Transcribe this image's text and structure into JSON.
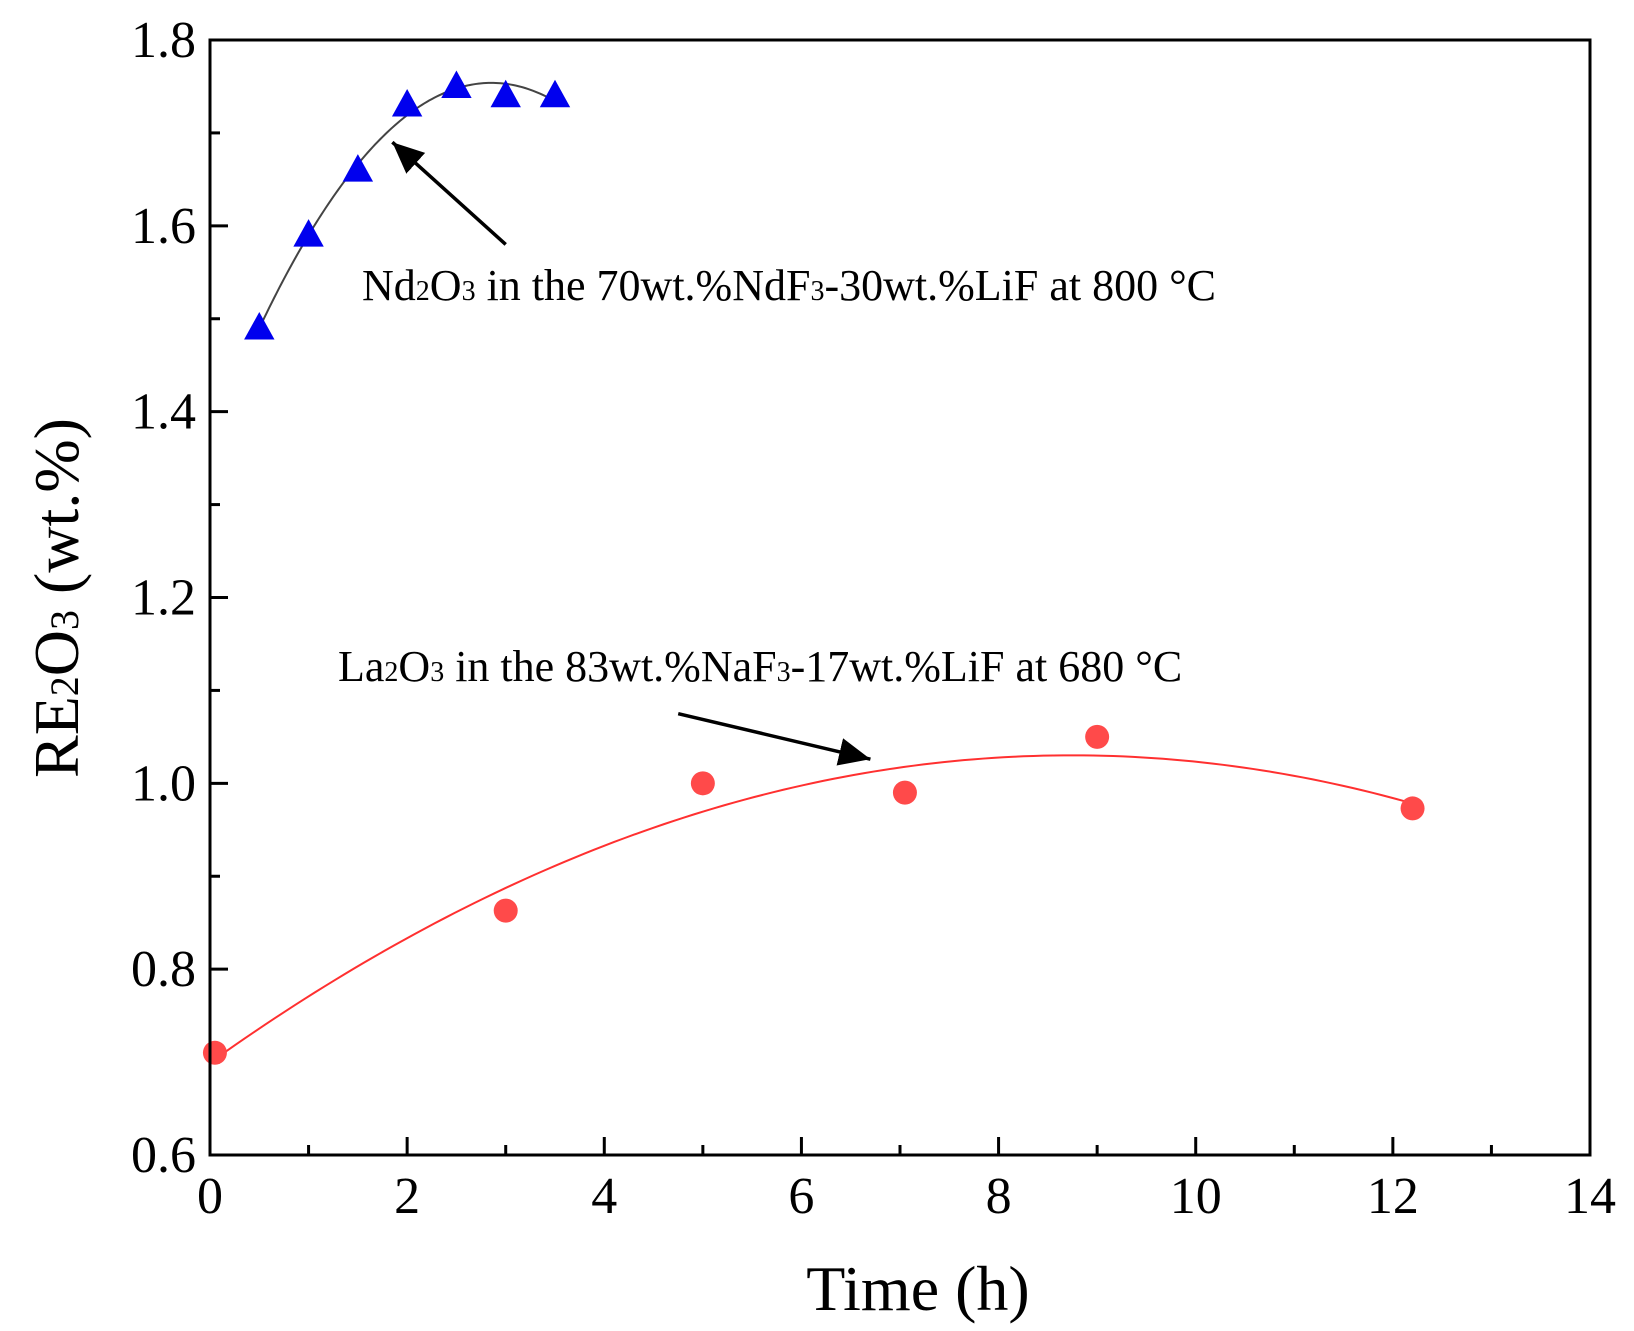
{
  "chart_data": {
    "type": "scatter",
    "title": "",
    "xlabel": "Time (h)",
    "ylabel": {
      "prefix": "RE",
      "sub1": "2",
      "mid": "O",
      "sub2": "3",
      "suffix": " (wt.%)"
    },
    "xlim": [
      0,
      14
    ],
    "ylim": [
      0.6,
      1.8
    ],
    "x_ticks": [
      0,
      2,
      4,
      6,
      8,
      10,
      12,
      14
    ],
    "x_tick_labels": [
      "0",
      "2",
      "4",
      "6",
      "8",
      "10",
      "12",
      "14"
    ],
    "x_minor_step": 1,
    "y_ticks": [
      0.6,
      0.8,
      1.0,
      1.2,
      1.4,
      1.6,
      1.8
    ],
    "y_tick_labels": [
      "0.6",
      "0.8",
      "1.0",
      "1.2",
      "1.4",
      "1.6",
      "1.8"
    ],
    "y_minor_step": 0.1,
    "series": [
      {
        "name": "Nd2O3",
        "marker": "triangle",
        "color": "#0000ee",
        "fit_color": "#444444",
        "x": [
          0.5,
          1.0,
          1.5,
          2.0,
          2.5,
          3.0,
          3.5
        ],
        "y": [
          1.49,
          1.59,
          1.66,
          1.73,
          1.75,
          1.74,
          1.74
        ],
        "fit_x_range": [
          0.5,
          3.5
        ]
      },
      {
        "name": "La2O3",
        "marker": "circle",
        "color": "#ff4a4a",
        "fit_color": "#ff3030",
        "x": [
          0.05,
          3.0,
          5.0,
          7.05,
          9.0,
          12.2
        ],
        "y": [
          0.71,
          0.863,
          1.0,
          0.99,
          1.05,
          0.973
        ],
        "fit_x_range": [
          0.05,
          12.2
        ]
      }
    ],
    "annotations": [
      {
        "name": "nd-annotation",
        "parts": [
          {
            "t": "Nd",
            "sub": false
          },
          {
            "t": "2",
            "sub": true
          },
          {
            "t": "O",
            "sub": false
          },
          {
            "t": "3",
            "sub": true
          },
          {
            "t": " in the 70wt.%NdF",
            "sub": false
          },
          {
            "t": "3",
            "sub": true
          },
          {
            "t": "-30wt.%LiF at 800 °C",
            "sub": false
          }
        ],
        "arrow_to": [
          1.85,
          1.69
        ],
        "arrow_from": [
          3.0,
          1.58
        ]
      },
      {
        "name": "la-annotation",
        "parts": [
          {
            "t": "La",
            "sub": false
          },
          {
            "t": "2",
            "sub": true
          },
          {
            "t": "O",
            "sub": false
          },
          {
            "t": "3",
            "sub": true
          },
          {
            "t": " in the 83wt.%NaF",
            "sub": false
          },
          {
            "t": "3",
            "sub": true
          },
          {
            "t": "-17wt.%LiF at 680 °C",
            "sub": false
          }
        ],
        "arrow_to": [
          6.7,
          1.026
        ],
        "arrow_from": [
          4.75,
          1.075
        ]
      }
    ]
  }
}
